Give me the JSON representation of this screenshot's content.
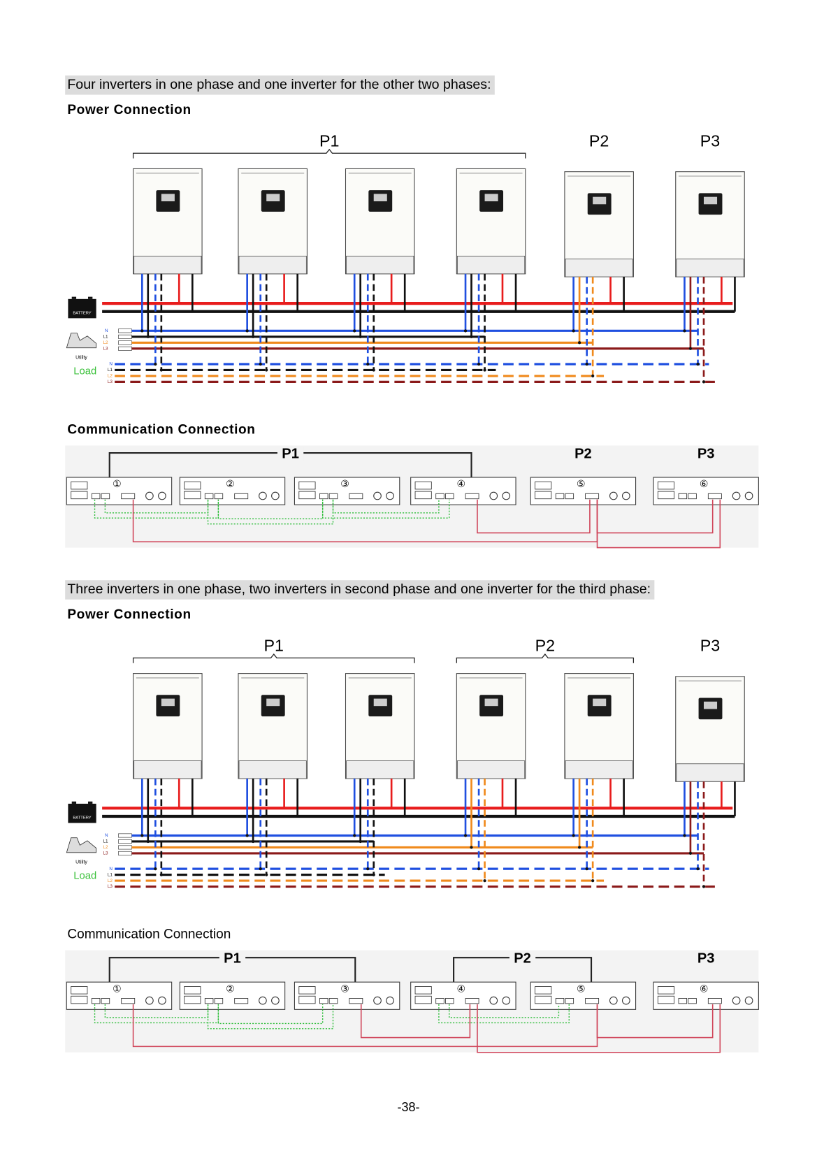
{
  "sections": [
    {
      "heading": "Four inverters in one phase and one inverter for the other two phases:",
      "power": {
        "title": "Power Connection",
        "phases": [
          "P1",
          "P2",
          "P3"
        ],
        "battery": "BATTERY",
        "utility": "Utility",
        "utility_lines": [
          "N",
          "L1",
          "L2",
          "L3"
        ],
        "load": "Load",
        "load_lines": [
          "N",
          "L1",
          "L2",
          "L3"
        ]
      },
      "communication": {
        "title": "Communication Connection",
        "groups": [
          {
            "label": "P1",
            "units": [
              "①",
              "②",
              "③",
              "④"
            ]
          },
          {
            "label": "P2",
            "units": [
              "⑤"
            ]
          },
          {
            "label": "P3",
            "units": [
              "⑥"
            ]
          }
        ]
      }
    },
    {
      "heading": "Three inverters in one phase, two inverters in second phase and one inverter for the third phase:",
      "power": {
        "title": "Power Connection",
        "phases": [
          "P1",
          "P2",
          "P3"
        ],
        "battery": "BATTERY",
        "utility": "Utility",
        "utility_lines": [
          "N",
          "L1",
          "L2",
          "L3"
        ],
        "load": "Load",
        "load_lines": [
          "N",
          "L1",
          "L2",
          "L3"
        ]
      },
      "communication": {
        "title": "Communication Connection",
        "groups": [
          {
            "label": "P1",
            "units": [
              "①",
              "②",
              "③"
            ]
          },
          {
            "label": "P2",
            "units": [
              "④",
              "⑤"
            ]
          },
          {
            "label": "P3",
            "units": [
              "⑥"
            ]
          }
        ]
      }
    }
  ],
  "page_number": "-38-"
}
